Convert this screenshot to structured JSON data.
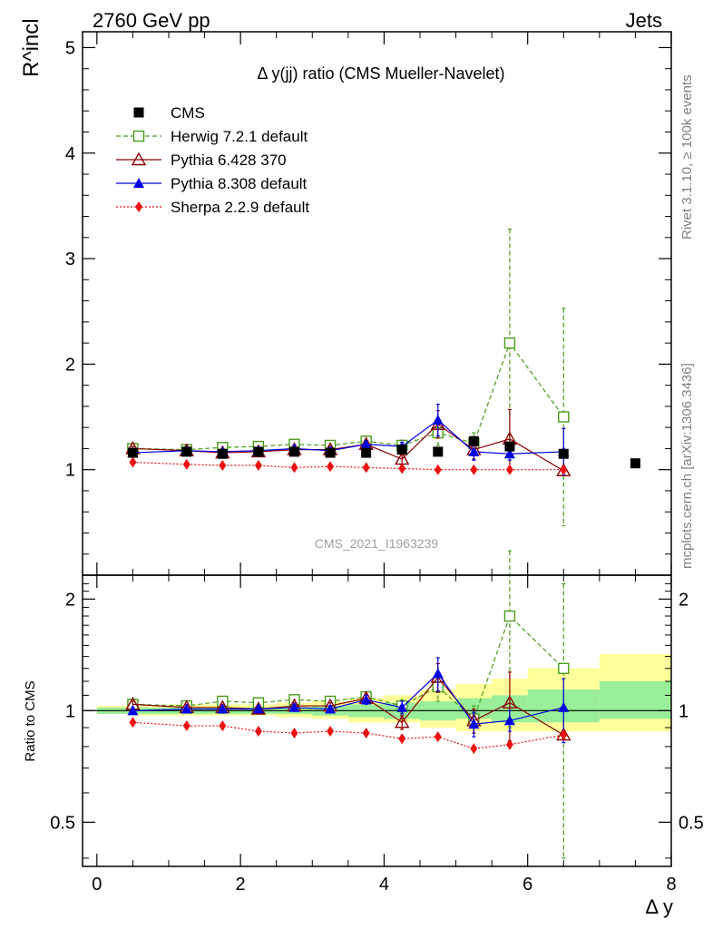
{
  "header": {
    "left": "2760 GeV pp",
    "right": "Jets"
  },
  "side_text": {
    "rivet": "Rivet 3.1.10, ≥ 100k events",
    "mcplots": "mcplots.cern.ch [arXiv:1306.3436]"
  },
  "watermark": "CMS_2021_I1963239",
  "chart_data": [
    {
      "type": "scatter",
      "panel": "main",
      "title": "Δ y(jj) ratio (CMS Mueller-Navelet)",
      "ylabel": "R^incl",
      "ylim": [
        0,
        5.15
      ],
      "xlim": [
        -0.2,
        8
      ],
      "yticks": [
        1,
        2,
        3,
        4,
        5
      ],
      "ytick_labels": [
        "1",
        "2",
        "3",
        "4",
        "5"
      ],
      "grid": false,
      "legend": "top-left",
      "series": [
        {
          "name": "CMS",
          "color": "#000000",
          "marker": "square-filled",
          "line": "none",
          "x": [
            0.5,
            1.25,
            1.75,
            2.25,
            2.75,
            3.25,
            3.75,
            4.25,
            4.75,
            5.25,
            5.75,
            6.5,
            7.5
          ],
          "y": [
            1.16,
            1.17,
            1.15,
            1.17,
            1.17,
            1.16,
            1.16,
            1.19,
            1.17,
            1.27,
            1.22,
            1.15,
            1.06
          ],
          "err": [
            0.02,
            0.02,
            0.02,
            0.02,
            0.02,
            0.02,
            0.02,
            0.02,
            0.02,
            0.03,
            0.03,
            0.02,
            0.02
          ]
        },
        {
          "name": "Herwig 7.2.1 default",
          "color": "#4a9a1a",
          "marker": "square-open",
          "line": "dashed",
          "x": [
            0.5,
            1.25,
            1.75,
            2.25,
            2.75,
            3.25,
            3.75,
            4.25,
            4.75,
            5.25,
            5.75,
            6.5
          ],
          "y": [
            1.2,
            1.19,
            1.21,
            1.22,
            1.24,
            1.23,
            1.27,
            1.23,
            1.35,
            1.25,
            2.2,
            1.5
          ],
          "err": [
            0.02,
            0.02,
            0.02,
            0.03,
            0.03,
            0.03,
            0.04,
            0.05,
            0.12,
            0.1,
            1.08,
            1.03
          ]
        },
        {
          "name": "Pythia 6.428 370",
          "color": "#8b0000",
          "marker": "triangle-open",
          "line": "solid",
          "x": [
            0.5,
            1.25,
            1.75,
            2.25,
            2.75,
            3.25,
            3.75,
            4.25,
            4.75,
            5.25,
            5.75,
            6.5
          ],
          "y": [
            1.2,
            1.18,
            1.16,
            1.17,
            1.19,
            1.19,
            1.24,
            1.1,
            1.43,
            1.19,
            1.29,
            0.99
          ],
          "err": [
            0.02,
            0.02,
            0.02,
            0.02,
            0.03,
            0.03,
            0.04,
            0.05,
            0.13,
            0.09,
            0.28,
            0.02
          ]
        },
        {
          "name": "Pythia 8.308 default",
          "color": "#0000e0",
          "marker": "triangle-filled",
          "line": "solid",
          "x": [
            0.5,
            1.25,
            1.75,
            2.25,
            2.75,
            3.25,
            3.75,
            4.25,
            4.75,
            5.25,
            5.75,
            6.5
          ],
          "y": [
            1.16,
            1.18,
            1.17,
            1.18,
            1.2,
            1.18,
            1.24,
            1.22,
            1.47,
            1.17,
            1.15,
            1.17
          ],
          "err": [
            0.02,
            0.02,
            0.02,
            0.02,
            0.02,
            0.03,
            0.03,
            0.04,
            0.15,
            0.08,
            0.06,
            0.22
          ]
        },
        {
          "name": "Sherpa 2.2.9 default",
          "color": "#ee1111",
          "marker": "diamond-filled",
          "line": "dotted",
          "x": [
            0.5,
            1.25,
            1.75,
            2.25,
            2.75,
            3.25,
            3.75,
            4.25,
            4.75,
            5.25,
            5.75,
            6.5
          ],
          "y": [
            1.07,
            1.05,
            1.04,
            1.04,
            1.02,
            1.03,
            1.02,
            1.01,
            1.0,
            1.0,
            1.0,
            1.0
          ],
          "err": [
            0.01,
            0.01,
            0.01,
            0.01,
            0.01,
            0.01,
            0.01,
            0.01,
            0.01,
            0.01,
            0.01,
            0.01
          ]
        }
      ]
    },
    {
      "type": "scatter",
      "panel": "ratio",
      "ylabel": "Ratio to CMS",
      "xlabel": "Δ y",
      "ylim": [
        0.38,
        2.32
      ],
      "xlim": [
        -0.2,
        8
      ],
      "log_y": true,
      "yticks": [
        0.5,
        1,
        2
      ],
      "ytick_labels": [
        "0.5",
        "1",
        "2"
      ],
      "xticks": [
        0,
        2,
        4,
        6,
        8
      ],
      "xtick_labels": [
        "0",
        "2",
        "4",
        "6",
        "8"
      ],
      "uncertainty_bands": {
        "x_edges": [
          0,
          0.5,
          1.0,
          1.5,
          2.0,
          2.5,
          3.0,
          3.5,
          4.0,
          4.5,
          5.0,
          5.5,
          6.0,
          7.0,
          8.0
        ],
        "inner": [
          [
            0.98,
            1.02
          ],
          [
            0.98,
            1.02
          ],
          [
            0.98,
            1.02
          ],
          [
            0.98,
            1.02
          ],
          [
            0.98,
            1.02
          ],
          [
            0.98,
            1.02
          ],
          [
            0.97,
            1.03
          ],
          [
            0.96,
            1.04
          ],
          [
            0.95,
            1.05
          ],
          [
            0.94,
            1.06
          ],
          [
            0.95,
            1.08
          ],
          [
            0.93,
            1.1
          ],
          [
            0.93,
            1.14
          ],
          [
            0.95,
            1.2
          ]
        ],
        "outer": [
          [
            0.98,
            1.03
          ],
          [
            0.97,
            1.03
          ],
          [
            0.97,
            1.04
          ],
          [
            0.97,
            1.04
          ],
          [
            0.97,
            1.04
          ],
          [
            0.96,
            1.05
          ],
          [
            0.95,
            1.06
          ],
          [
            0.93,
            1.08
          ],
          [
            0.93,
            1.1
          ],
          [
            0.9,
            1.14
          ],
          [
            0.88,
            1.18
          ],
          [
            0.88,
            1.22
          ],
          [
            0.88,
            1.3
          ],
          [
            0.88,
            1.42
          ]
        ],
        "inner_color": "#99ee99",
        "outer_color": "#ffff99"
      },
      "series": [
        {
          "name": "Herwig 7.2.1 default",
          "color": "#4a9a1a",
          "x": [
            0.5,
            1.25,
            1.75,
            2.25,
            2.75,
            3.25,
            3.75,
            4.25,
            4.75,
            5.25,
            5.75,
            6.5
          ],
          "y": [
            1.04,
            1.03,
            1.06,
            1.05,
            1.07,
            1.06,
            1.09,
            1.03,
            1.16,
            0.95,
            1.8,
            1.3
          ],
          "err": [
            0.02,
            0.02,
            0.02,
            0.02,
            0.03,
            0.03,
            0.03,
            0.04,
            0.1,
            0.08,
            0.9,
            0.9
          ]
        },
        {
          "name": "Pythia 6.428 370",
          "color": "#8b0000",
          "x": [
            0.5,
            1.25,
            1.75,
            2.25,
            2.75,
            3.25,
            3.75,
            4.25,
            4.75,
            5.25,
            5.75,
            6.5
          ],
          "y": [
            1.04,
            1.02,
            1.02,
            1.01,
            1.03,
            1.03,
            1.08,
            0.93,
            1.23,
            0.94,
            1.05,
            0.86
          ],
          "err": [
            0.02,
            0.02,
            0.02,
            0.02,
            0.02,
            0.02,
            0.03,
            0.04,
            0.11,
            0.07,
            0.22,
            0.02
          ]
        },
        {
          "name": "Pythia 8.308 default",
          "color": "#0000e0",
          "x": [
            0.5,
            1.25,
            1.75,
            2.25,
            2.75,
            3.25,
            3.75,
            4.25,
            4.75,
            5.25,
            5.75,
            6.5
          ],
          "y": [
            1.0,
            1.01,
            1.01,
            1.01,
            1.02,
            1.01,
            1.07,
            1.02,
            1.26,
            0.92,
            0.94,
            1.02
          ],
          "err": [
            0.02,
            0.02,
            0.02,
            0.02,
            0.02,
            0.02,
            0.03,
            0.04,
            0.13,
            0.07,
            0.06,
            0.2
          ]
        },
        {
          "name": "Sherpa 2.2.9 default",
          "color": "#ee1111",
          "x": [
            0.5,
            1.25,
            1.75,
            2.25,
            2.75,
            3.25,
            3.75,
            4.25,
            4.75,
            5.25,
            5.75,
            6.5
          ],
          "y": [
            0.93,
            0.91,
            0.91,
            0.88,
            0.87,
            0.88,
            0.87,
            0.84,
            0.85,
            0.79,
            0.81,
            0.86
          ],
          "err": [
            0.01,
            0.01,
            0.01,
            0.01,
            0.01,
            0.01,
            0.01,
            0.01,
            0.01,
            0.01,
            0.01,
            0.01
          ]
        }
      ]
    }
  ]
}
